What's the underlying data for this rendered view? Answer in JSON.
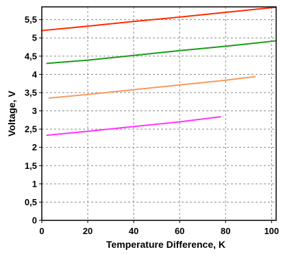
{
  "chart_data": {
    "type": "line",
    "xlabel": "Temperature Difference, K",
    "ylabel": "Voltage, V",
    "xlim": [
      0,
      102
    ],
    "ylim": [
      0,
      5.85
    ],
    "x_ticks": [
      0,
      20,
      40,
      60,
      80,
      100
    ],
    "x_tick_labels": [
      "0",
      "20",
      "40",
      "60",
      "80",
      "100"
    ],
    "y_ticks": [
      0,
      0.5,
      1,
      1.5,
      2,
      2.5,
      3,
      3.5,
      4,
      4.5,
      5,
      5.5
    ],
    "y_tick_labels": [
      "0",
      "0,5",
      "1",
      "1,5",
      "2",
      "2,5",
      "3",
      "3,5",
      "4",
      "4,5",
      "5",
      "5,5"
    ],
    "grid": true,
    "grid_style": "dashed",
    "series": [
      {
        "color": "#ff2a00",
        "x": [
          0,
          20,
          40,
          60,
          80,
          102
        ],
        "y": [
          5.2,
          5.32,
          5.45,
          5.57,
          5.7,
          5.84
        ]
      },
      {
        "color": "#1a9a1a",
        "x": [
          2,
          20,
          40,
          60,
          80,
          102
        ],
        "y": [
          4.3,
          4.39,
          4.52,
          4.65,
          4.77,
          4.92
        ]
      },
      {
        "color": "#f59a60",
        "x": [
          3,
          20,
          40,
          60,
          80,
          93
        ],
        "y": [
          3.35,
          3.45,
          3.58,
          3.71,
          3.84,
          3.94
        ]
      },
      {
        "color": "#ff33ff",
        "x": [
          2,
          20,
          40,
          60,
          78
        ],
        "y": [
          2.33,
          2.44,
          2.57,
          2.7,
          2.84
        ]
      }
    ]
  }
}
